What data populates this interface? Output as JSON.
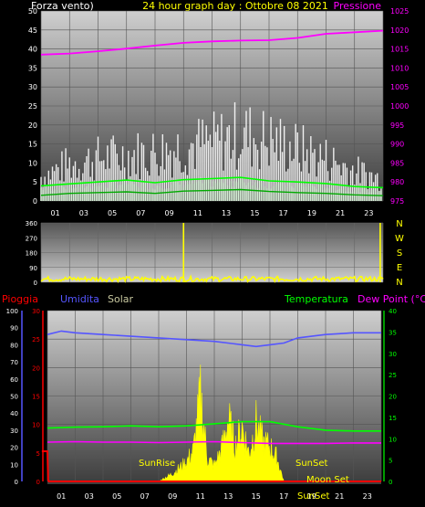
{
  "header": {
    "left_label": "Forza vento)",
    "title": "24 hour graph day : Ottobre 08 2021",
    "right_label": "Pressione"
  },
  "colors": {
    "background": "#000000",
    "white": "#ffffff",
    "magenta": "#ff00ff",
    "yellow": "#ffff00",
    "green": "#00ff00",
    "blue": "#5555ff",
    "red": "#ff0000",
    "solar": "#c8c8a0",
    "grid_dark": "#555555",
    "grid_light": "#e6e6e6"
  },
  "chart_data": [
    {
      "id": "wind",
      "type": "bar",
      "left_axis": {
        "label": "Forza vento)",
        "ticks": [
          0,
          5,
          10,
          15,
          20,
          25,
          30,
          35,
          40,
          45,
          50
        ],
        "range": [
          0,
          50
        ]
      },
      "right_axis": {
        "label": "Pressione",
        "ticks": [
          975,
          980,
          985,
          990,
          995,
          1000,
          1005,
          1010,
          1015,
          1020,
          1025
        ],
        "range": [
          975,
          1025
        ]
      },
      "x_ticks": [
        "01",
        "03",
        "05",
        "07",
        "09",
        "11",
        "13",
        "15",
        "17",
        "19",
        "21",
        "23"
      ],
      "series": [
        {
          "type": "line",
          "axis": "right",
          "color": "#ff00ff",
          "x": [
            0,
            2,
            4,
            6,
            8,
            10,
            12,
            14,
            16,
            18,
            20,
            22,
            24
          ],
          "values": [
            1013.5,
            1013.8,
            1014.4,
            1015.1,
            1015.9,
            1016.6,
            1017.0,
            1017.2,
            1017.3,
            1017.9,
            1019.0,
            1019.4,
            1019.8
          ]
        },
        {
          "type": "bar",
          "axis": "left",
          "color": "#ffffff",
          "x": [
            0,
            2,
            4,
            6,
            8,
            10,
            12,
            14,
            16,
            18,
            20,
            22,
            24
          ],
          "values": [
            8,
            12,
            14,
            15,
            16,
            18,
            19,
            22,
            20,
            17,
            14,
            10,
            7
          ]
        },
        {
          "type": "line",
          "axis": "left",
          "color": "#00ff00",
          "x": [
            0,
            2,
            4,
            6,
            8,
            10,
            12,
            14,
            16,
            18,
            20,
            22,
            24
          ],
          "values": [
            4,
            4.5,
            5,
            5.5,
            4.8,
            5.6,
            5.9,
            6.2,
            5.3,
            5.0,
            4.6,
            3.8,
            3.5
          ]
        },
        {
          "type": "line",
          "axis": "left",
          "color": "#00aa00",
          "x": [
            0,
            2,
            4,
            6,
            8,
            10,
            12,
            14,
            16,
            18,
            20,
            22,
            24
          ],
          "values": [
            1.5,
            2,
            2.2,
            2.4,
            2,
            2.6,
            2.8,
            3,
            2.5,
            2.2,
            2,
            1.6,
            1.4
          ]
        }
      ]
    },
    {
      "id": "direction",
      "type": "line",
      "left_axis": {
        "ticks": [
          0,
          90,
          180,
          270,
          360
        ],
        "range": [
          0,
          360
        ]
      },
      "right_axis": {
        "ticks": [
          "N",
          "W",
          "S",
          "E",
          "N"
        ]
      },
      "series": [
        {
          "color": "#ffff00",
          "x": [
            0,
            2,
            4,
            6,
            8,
            9.5,
            10,
            12,
            14,
            16,
            18,
            20,
            22,
            23.8,
            24
          ],
          "values": [
            30,
            25,
            20,
            22,
            18,
            20,
            360,
            25,
            22,
            18,
            20,
            22,
            25,
            360,
            30
          ]
        }
      ]
    },
    {
      "id": "rain-humidity-temp",
      "type": "line",
      "legend": [
        "Pioggia",
        "Umidita",
        "Solar",
        "Temperatura",
        "Dew Point (°C)"
      ],
      "axes": {
        "far_left": {
          "label": "Umidita",
          "ticks": [
            0,
            10,
            20,
            30,
            40,
            50,
            60,
            70,
            80,
            90,
            100
          ],
          "range": [
            0,
            100
          ]
        },
        "left": {
          "label": "Pioggia",
          "ticks": [
            0,
            5,
            10,
            15,
            20,
            25,
            30
          ],
          "range": [
            0,
            30
          ]
        },
        "right": {
          "label": "Temperatura",
          "ticks": [
            0,
            5,
            10,
            15,
            20,
            25,
            30,
            35,
            40
          ],
          "range": [
            0,
            40
          ]
        }
      },
      "x_ticks": [
        "01",
        "03",
        "05",
        "07",
        "09",
        "11",
        "13",
        "15",
        "17",
        "19",
        "21",
        "23"
      ],
      "annotations": [
        "SunRise",
        "SunSet",
        "Moon Set",
        "SunSet"
      ],
      "series": [
        {
          "name": "Umidita",
          "axis": "far_left",
          "color": "#5555ff",
          "x": [
            0,
            1,
            2,
            4,
            6,
            8,
            10,
            12,
            14,
            15,
            16,
            17,
            18,
            20,
            22,
            24
          ],
          "values": [
            86,
            88,
            87,
            86,
            85,
            84,
            83,
            82,
            80,
            79,
            80,
            81,
            84,
            86,
            87,
            87
          ]
        },
        {
          "name": "Temperatura",
          "axis": "right",
          "color": "#00ff00",
          "x": [
            0,
            2,
            4,
            6,
            8,
            10,
            12,
            14,
            16,
            18,
            20,
            22,
            24
          ],
          "values": [
            12.5,
            12.7,
            12.8,
            13.0,
            12.8,
            13.0,
            13.5,
            14.0,
            14.0,
            12.8,
            12.0,
            11.8,
            11.8
          ]
        },
        {
          "name": "Dew Point (°C)",
          "axis": "right",
          "color": "#ff00ff",
          "x": [
            0,
            2,
            4,
            6,
            8,
            10,
            12,
            14,
            16,
            18,
            20,
            22,
            24
          ],
          "values": [
            9.2,
            9.3,
            9.2,
            9.2,
            9.1,
            9.2,
            9.3,
            9.1,
            8.9,
            8.9,
            8.9,
            9.0,
            9.0
          ]
        },
        {
          "name": "Pioggia",
          "axis": "left",
          "color": "#ff0000",
          "x": [
            -0.4,
            0,
            0.05,
            0.1,
            24
          ],
          "values": [
            5.3,
            5.3,
            0.3,
            0,
            0
          ]
        },
        {
          "name": "Solar",
          "axis": "right",
          "color": "#ffff00",
          "x": [
            8.0,
            9.0,
            10.0,
            10.5,
            11.0,
            11.5,
            12.0,
            12.5,
            13.0,
            13.5,
            14.0,
            14.5,
            15.0,
            15.5,
            16.0,
            16.5,
            17.0
          ],
          "values": [
            0,
            2,
            5,
            8,
            22,
            6,
            4,
            8,
            16,
            9,
            14,
            7,
            15,
            10,
            9,
            6,
            0
          ]
        }
      ]
    }
  ]
}
